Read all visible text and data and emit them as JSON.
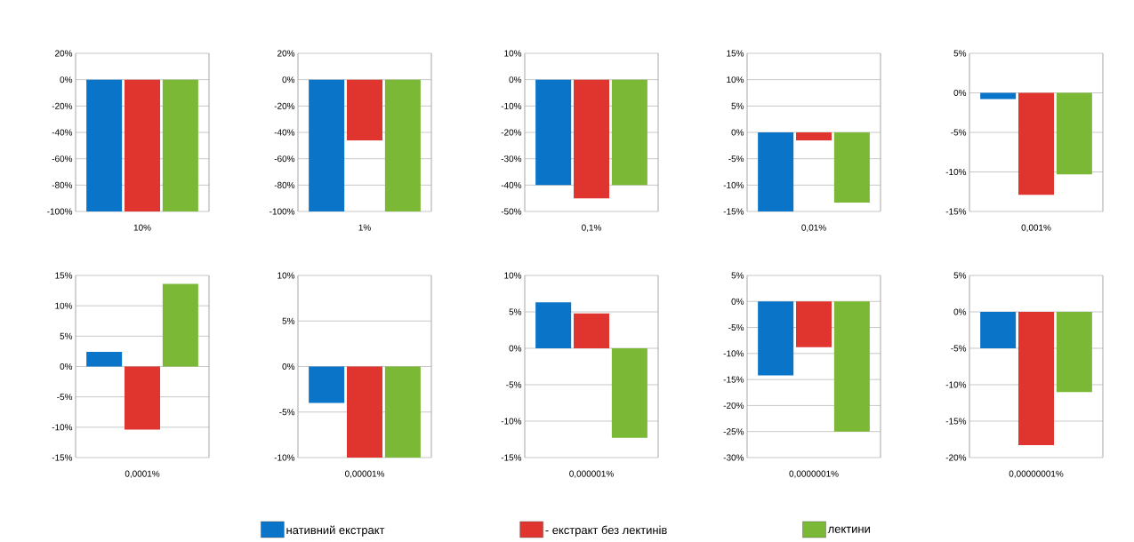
{
  "chart_data": [
    {
      "type": "bar",
      "xlabel": "10%",
      "categories": [
        null,
        null,
        null
      ],
      "legend": "bottom",
      "grid": "y",
      "ylim": [
        -100,
        20
      ],
      "yticks": [
        {
          "value": -100,
          "label": "-100%"
        },
        {
          "value": -80,
          "label": "-80%"
        },
        {
          "value": -60,
          "label": "-60%"
        },
        {
          "value": -40,
          "label": "-40%"
        },
        {
          "value": -20,
          "label": "-20%"
        },
        {
          "value": 0,
          "label": "0%"
        },
        {
          "value": 20,
          "label": "20%"
        }
      ],
      "series": [
        {
          "name": "нативний екстракт",
          "color": "#0a74c8",
          "values": [
            -100,
            null,
            null
          ]
        },
        {
          "name": "- екстракт без лектинів",
          "color": "#e0352f",
          "values": [
            null,
            -100,
            null
          ]
        },
        {
          "name": "лектини",
          "color": "#7ab835",
          "values": [
            null,
            null,
            -100
          ]
        }
      ]
    },
    {
      "type": "bar",
      "xlabel": "1%",
      "categories": [
        null,
        null,
        null
      ],
      "grid": "y",
      "ylim": [
        -100,
        20
      ],
      "yticks": [
        {
          "value": -100,
          "label": "-100%"
        },
        {
          "value": -80,
          "label": "-80%"
        },
        {
          "value": -60,
          "label": "-60%"
        },
        {
          "value": -40,
          "label": "-40%"
        },
        {
          "value": -20,
          "label": "-20%"
        },
        {
          "value": 0,
          "label": "0%"
        },
        {
          "value": 20,
          "label": "20%"
        }
      ],
      "series": [
        {
          "color": "#0a74c8",
          "values": [
            -100,
            null,
            null
          ]
        },
        {
          "color": "#e0352f",
          "values": [
            null,
            -46,
            null
          ]
        },
        {
          "color": "#7ab835",
          "values": [
            null,
            null,
            -100
          ]
        }
      ]
    },
    {
      "type": "bar",
      "xlabel": "0,1%",
      "categories": [
        null,
        null,
        null
      ],
      "grid": "y",
      "ylim": [
        -50,
        10
      ],
      "yticks": [
        {
          "value": -50,
          "label": "-50%"
        },
        {
          "value": -40,
          "label": "-40%"
        },
        {
          "value": -30,
          "label": "-30%"
        },
        {
          "value": -20,
          "label": "-20%"
        },
        {
          "value": -10,
          "label": "-10%"
        },
        {
          "value": 0,
          "label": "0%"
        },
        {
          "value": 10,
          "label": "10%"
        }
      ],
      "series": [
        {
          "color": "#0a74c8",
          "values": [
            -40,
            null,
            null
          ]
        },
        {
          "color": "#e0352f",
          "values": [
            null,
            -45,
            null
          ]
        },
        {
          "color": "#7ab835",
          "values": [
            null,
            null,
            -40
          ]
        }
      ]
    },
    {
      "type": "bar",
      "xlabel": "0,01%",
      "categories": [
        null,
        null,
        null
      ],
      "grid": "y",
      "ylim": [
        -15,
        15
      ],
      "yticks": [
        {
          "value": -15,
          "label": "-15%"
        },
        {
          "value": -10,
          "label": "-10%"
        },
        {
          "value": -5,
          "label": "-5%"
        },
        {
          "value": 0,
          "label": "0%"
        },
        {
          "value": 5,
          "label": "5%"
        },
        {
          "value": 10,
          "label": "10%"
        },
        {
          "value": 15,
          "label": "15%"
        }
      ],
      "series": [
        {
          "color": "#0a74c8",
          "values": [
            -15,
            null,
            null
          ]
        },
        {
          "color": "#e0352f",
          "values": [
            null,
            -1.5,
            null
          ]
        },
        {
          "color": "#7ab835",
          "values": [
            null,
            null,
            -13.3
          ]
        }
      ]
    },
    {
      "type": "bar",
      "xlabel": "0,001%",
      "categories": [
        null,
        null,
        null
      ],
      "grid": "y",
      "ylim": [
        -15,
        5
      ],
      "yticks": [
        {
          "value": -15,
          "label": "-15%"
        },
        {
          "value": -10,
          "label": "-10%"
        },
        {
          "value": -5,
          "label": "-5%"
        },
        {
          "value": 0,
          "label": "0%"
        },
        {
          "value": 5,
          "label": "5%"
        }
      ],
      "series": [
        {
          "color": "#0a74c8",
          "values": [
            -0.8,
            null,
            null
          ]
        },
        {
          "color": "#e0352f",
          "values": [
            null,
            -12.9,
            null
          ]
        },
        {
          "color": "#7ab835",
          "values": [
            null,
            null,
            -10.3
          ]
        }
      ]
    },
    {
      "type": "bar",
      "xlabel": "0,0001%",
      "categories": [
        null,
        null,
        null
      ],
      "grid": "y",
      "ylim": [
        -15,
        15
      ],
      "yticks": [
        {
          "value": -15,
          "label": "-15%"
        },
        {
          "value": -10,
          "label": "-10%"
        },
        {
          "value": -5,
          "label": "-5%"
        },
        {
          "value": 0,
          "label": "0%"
        },
        {
          "value": 5,
          "label": "5%"
        },
        {
          "value": 10,
          "label": "10%"
        },
        {
          "value": 15,
          "label": "15%"
        }
      ],
      "series": [
        {
          "color": "#0a74c8",
          "values": [
            2.4,
            null,
            null
          ]
        },
        {
          "color": "#e0352f",
          "values": [
            null,
            -10.4,
            null
          ]
        },
        {
          "color": "#7ab835",
          "values": [
            null,
            null,
            13.6
          ]
        }
      ]
    },
    {
      "type": "bar",
      "xlabel": "0,00001%",
      "categories": [
        null,
        null,
        null
      ],
      "grid": "y",
      "ylim": [
        -10,
        10
      ],
      "yticks": [
        {
          "value": -10,
          "label": "-10%"
        },
        {
          "value": -5,
          "label": "-5%"
        },
        {
          "value": 0,
          "label": "0%"
        },
        {
          "value": 5,
          "label": "5%"
        },
        {
          "value": 10,
          "label": "10%"
        }
      ],
      "series": [
        {
          "color": "#0a74c8",
          "values": [
            -4,
            null,
            null
          ]
        },
        {
          "color": "#e0352f",
          "values": [
            null,
            -10,
            null
          ]
        },
        {
          "color": "#7ab835",
          "values": [
            null,
            null,
            -10
          ]
        }
      ]
    },
    {
      "type": "bar",
      "xlabel": "0,000001%",
      "categories": [
        null,
        null,
        null
      ],
      "grid": "y",
      "ylim": [
        -15,
        10
      ],
      "yticks": [
        {
          "value": -15,
          "label": "-15%"
        },
        {
          "value": -10,
          "label": "-10%"
        },
        {
          "value": -5,
          "label": "-5%"
        },
        {
          "value": 0,
          "label": "0%"
        },
        {
          "value": 5,
          "label": "5%"
        },
        {
          "value": 10,
          "label": "10%"
        }
      ],
      "series": [
        {
          "color": "#0a74c8",
          "values": [
            6.3,
            null,
            null
          ]
        },
        {
          "color": "#e0352f",
          "values": [
            null,
            4.8,
            null
          ]
        },
        {
          "color": "#7ab835",
          "values": [
            null,
            null,
            -12.3
          ]
        }
      ]
    },
    {
      "type": "bar",
      "xlabel": "0,0000001%",
      "categories": [
        null,
        null,
        null
      ],
      "grid": "y",
      "ylim": [
        -30,
        5
      ],
      "yticks": [
        {
          "value": -30,
          "label": "-30%"
        },
        {
          "value": -25,
          "label": "-25%"
        },
        {
          "value": -20,
          "label": "-20%"
        },
        {
          "value": -15,
          "label": "-15%"
        },
        {
          "value": -10,
          "label": "-10%"
        },
        {
          "value": -5,
          "label": "-5%"
        },
        {
          "value": 0,
          "label": "0%"
        },
        {
          "value": 5,
          "label": "5%"
        }
      ],
      "series": [
        {
          "color": "#0a74c8",
          "values": [
            -14.2,
            null,
            null
          ]
        },
        {
          "color": "#e0352f",
          "values": [
            null,
            -8.8,
            null
          ]
        },
        {
          "color": "#7ab835",
          "values": [
            null,
            null,
            -25
          ]
        }
      ]
    },
    {
      "type": "bar",
      "xlabel": "0,00000001%",
      "categories": [
        null,
        null,
        null
      ],
      "grid": "y",
      "ylim": [
        -20,
        5
      ],
      "yticks": [
        {
          "value": -20,
          "label": "-20%"
        },
        {
          "value": -15,
          "label": "-15%"
        },
        {
          "value": -10,
          "label": "-10%"
        },
        {
          "value": -5,
          "label": "-5%"
        },
        {
          "value": 0,
          "label": "0%"
        },
        {
          "value": 5,
          "label": "5%"
        }
      ],
      "series": [
        {
          "color": "#0a74c8",
          "values": [
            -5,
            null,
            null
          ]
        },
        {
          "color": "#e0352f",
          "values": [
            null,
            -18.3,
            null
          ]
        },
        {
          "color": "#7ab835",
          "values": [
            null,
            null,
            -11
          ]
        }
      ]
    }
  ]
}
